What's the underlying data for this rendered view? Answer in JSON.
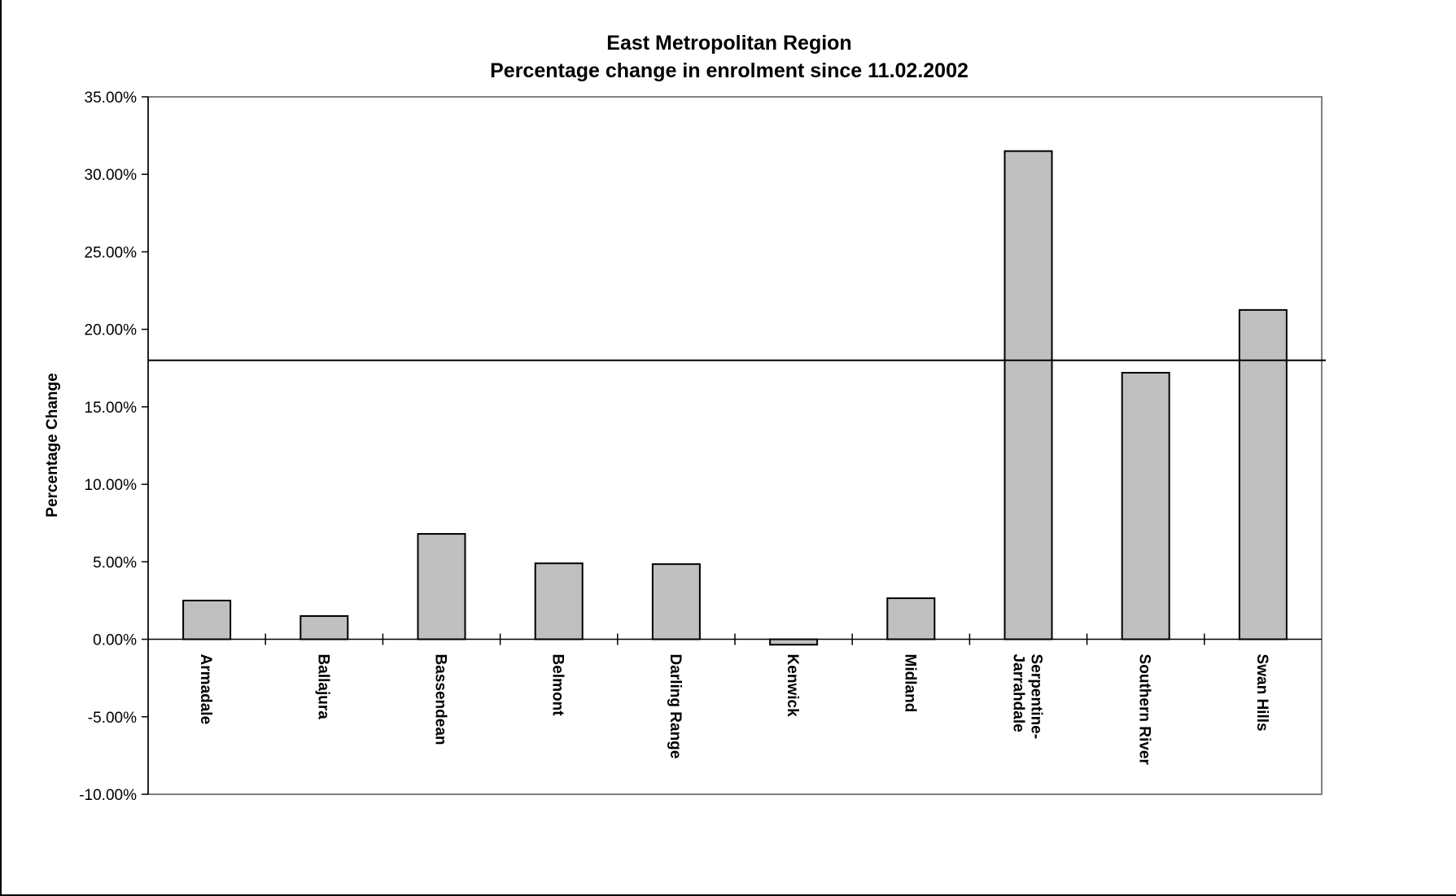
{
  "chart_data": {
    "type": "bar",
    "title": [
      "East Metropolitan Region",
      "Percentage change in enrolment since 11.02.2002"
    ],
    "xlabel": "",
    "ylabel": "Percentage Change",
    "ylim": [
      -10,
      35
    ],
    "ytick_step": 5,
    "ytick_labels": [
      "35.00%",
      "30.00%",
      "25.00%",
      "20.00%",
      "15.00%",
      "10.00%",
      "5.00%",
      "0.00%",
      "-5.00%",
      "-10.00%"
    ],
    "categories": [
      "Armadale",
      "Ballajura",
      "Bassendean",
      "Belmont",
      "Darling Range",
      "Kenwick",
      "Midland",
      "Serpentine-Jarrahdale",
      "Southern River",
      "Swan Hills"
    ],
    "category_label_lines": [
      [
        "Armadale"
      ],
      [
        "Ballajura"
      ],
      [
        "Bassendean"
      ],
      [
        "Belmont"
      ],
      [
        "Darling Range"
      ],
      [
        "Kenwick"
      ],
      [
        "Midland"
      ],
      [
        "Serpentine-",
        "Jarrahdale"
      ],
      [
        "Southern River"
      ],
      [
        "Swan Hills"
      ]
    ],
    "values": [
      2.5,
      1.5,
      6.8,
      4.9,
      4.85,
      -0.35,
      2.65,
      31.5,
      17.2,
      21.25
    ],
    "reference_line": 18,
    "grid": false,
    "legend": "none",
    "colors": {
      "bar_fill": "#c0c0c0",
      "bar_stroke": "#000000",
      "plot_border": "#808080",
      "frame": "#000000",
      "background": "#ffffff"
    }
  }
}
